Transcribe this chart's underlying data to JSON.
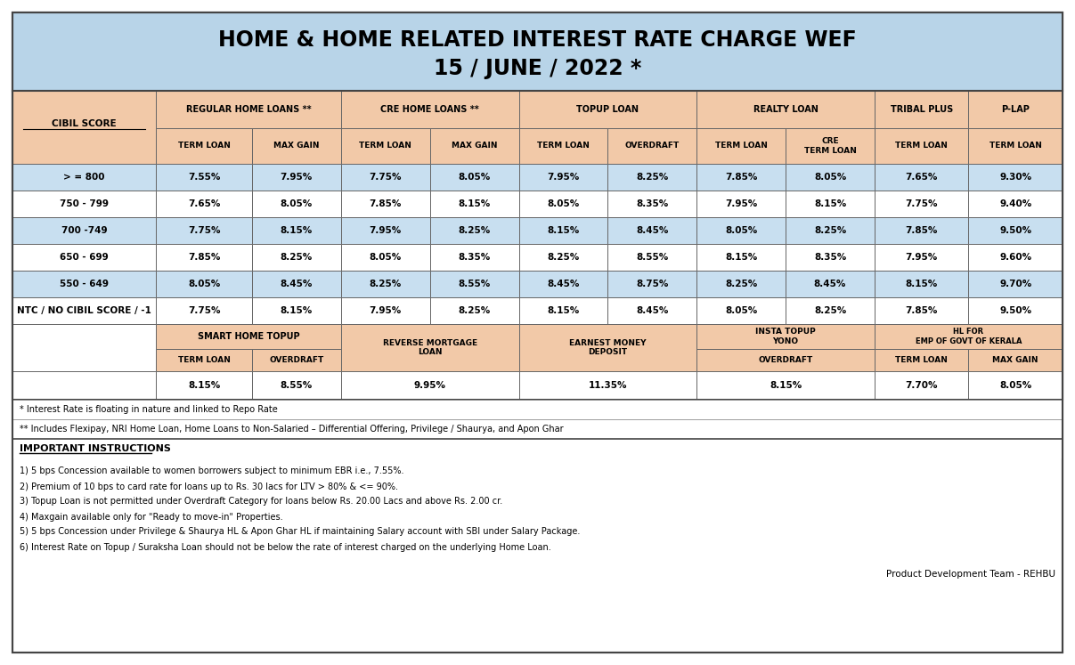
{
  "title_line1": "HOME & HOME RELATED INTEREST RATE CHARGE WEF",
  "title_line2": "15 / JUNE / 2022 *",
  "title_bg": "#b8d4e8",
  "header_bg": "#f2c9a8",
  "row_bg_light": "#c8dff0",
  "outer_bg": "#ffffff",
  "data_rows": [
    {
      "label": "> = 800",
      "values": [
        "7.55%",
        "7.95%",
        "7.75%",
        "8.05%",
        "7.95%",
        "8.25%",
        "7.85%",
        "8.05%",
        "7.65%",
        "9.30%"
      ],
      "light": true
    },
    {
      "label": "750 - 799",
      "values": [
        "7.65%",
        "8.05%",
        "7.85%",
        "8.15%",
        "8.05%",
        "8.35%",
        "7.95%",
        "8.15%",
        "7.75%",
        "9.40%"
      ],
      "light": false
    },
    {
      "label": "700 -749",
      "values": [
        "7.75%",
        "8.15%",
        "7.95%",
        "8.25%",
        "8.15%",
        "8.45%",
        "8.05%",
        "8.25%",
        "7.85%",
        "9.50%"
      ],
      "light": true
    },
    {
      "label": "650 - 699",
      "values": [
        "7.85%",
        "8.25%",
        "8.05%",
        "8.35%",
        "8.25%",
        "8.55%",
        "8.15%",
        "8.35%",
        "7.95%",
        "9.60%"
      ],
      "light": false
    },
    {
      "label": "550 - 649",
      "values": [
        "8.05%",
        "8.45%",
        "8.25%",
        "8.55%",
        "8.45%",
        "8.75%",
        "8.25%",
        "8.45%",
        "8.15%",
        "9.70%"
      ],
      "light": true
    },
    {
      "label": "NTC / NO CIBIL SCORE / -1",
      "values": [
        "7.75%",
        "8.15%",
        "7.95%",
        "8.25%",
        "8.15%",
        "8.45%",
        "8.05%",
        "8.25%",
        "7.85%",
        "9.50%"
      ],
      "light": false
    }
  ],
  "footnote1": "* Interest Rate is floating in nature and linked to Repo Rate",
  "footnote2": "** Includes Flexipay, NRI Home Loan, Home Loans to Non-Salaried – Differential Offering, Privilege / Shaurya, and Apon Ghar",
  "important_instructions_title": "IMPORTANT INSTRUCTIONS",
  "instructions": [
    "1) 5 bps Concession available to women borrowers subject to minimum EBR i.e., 7.55%.",
    "2) Premium of 10 bps to card rate for loans up to Rs. 30 lacs for LTV > 80% & <= 90%.",
    "3) Topup Loan is not permitted under Overdraft Category for loans below Rs. 20.00 Lacs and above Rs. 2.00 cr.",
    "4) Maxgain available only for \"Ready to move-in\" Properties.",
    "5) 5 bps Concession under Privilege & Shaurya HL & Apon Ghar HL if maintaining Salary account with SBI under Salary Package.",
    "6) Interest Rate on Topup / Suraksha Loan should not be below the rate of interest charged on the underlying Home Loan."
  ],
  "product_team": "Product Development Team - REHBU"
}
